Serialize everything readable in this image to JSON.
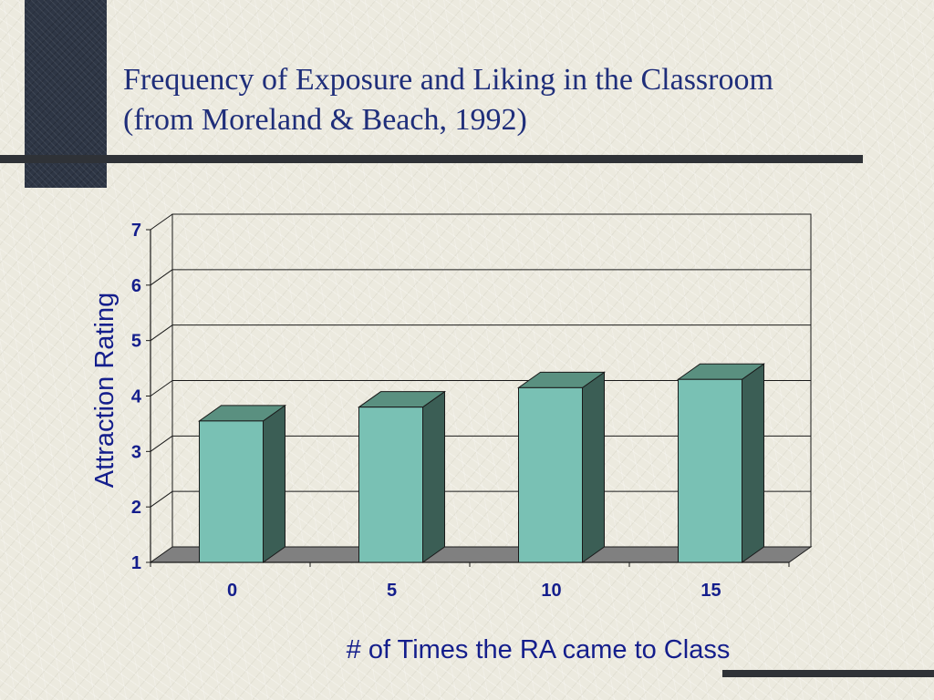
{
  "slide": {
    "title_line1": "Frequency of Exposure and Liking in the Classroom",
    "title_line2": "(from Moreland & Beach, 1992)"
  },
  "colors": {
    "title": "#1f2e7a",
    "axis_text": "#141e8c",
    "bar_front": "#79c1b4",
    "bar_side": "#3b5e55",
    "bar_top": "#5a9080",
    "floor": "#808080",
    "accent_block": "#2e3645",
    "rule": "#2f3237"
  },
  "chart_data": {
    "type": "bar",
    "categories": [
      "0",
      "5",
      "10",
      "15"
    ],
    "values": [
      3.55,
      3.8,
      4.15,
      4.3
    ],
    "xlabel": "# of Times the RA came to Class",
    "ylabel": "Attraction Rating",
    "ylim": [
      1,
      7
    ],
    "yticks": [
      "1",
      "2",
      "3",
      "4",
      "5",
      "6",
      "7"
    ],
    "grid": true,
    "style": "3d"
  }
}
